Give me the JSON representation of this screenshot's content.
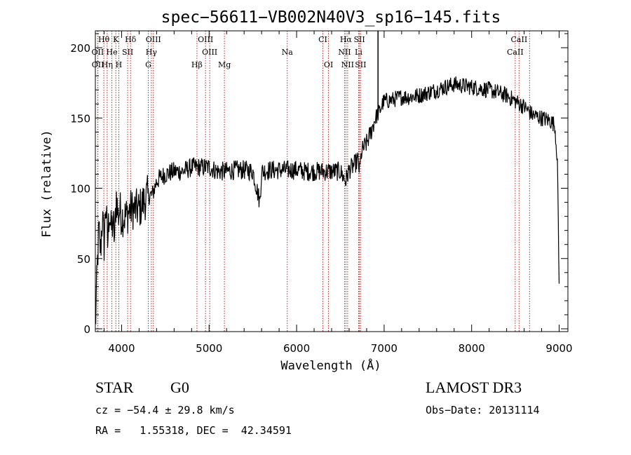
{
  "chart_data": {
    "type": "line",
    "title": "spec−56611−VB002N40V3_sp16−145.fits",
    "xlabel": "Wavelength (Å)",
    "ylabel": "Flux (relative)",
    "xlim": [
      3700,
      9100
    ],
    "ylim": [
      -2,
      212
    ],
    "xticks": [
      4000,
      5000,
      6000,
      7000,
      8000,
      9000
    ],
    "yticks": [
      0,
      50,
      100,
      150,
      200
    ],
    "series": [
      {
        "name": "flux",
        "x": [
          3700,
          3720,
          3740,
          3760,
          3780,
          3800,
          3820,
          3840,
          3860,
          3880,
          3900,
          3920,
          3940,
          3960,
          3980,
          4000,
          4050,
          4100,
          4150,
          4200,
          4250,
          4300,
          4350,
          4400,
          4450,
          4500,
          4600,
          4700,
          4800,
          4900,
          5000,
          5100,
          5200,
          5300,
          5400,
          5500,
          5580,
          5600,
          5700,
          5800,
          5900,
          6000,
          6100,
          6200,
          6300,
          6400,
          6500,
          6560,
          6600,
          6650,
          6700,
          6720,
          6740,
          6760,
          6800,
          6850,
          6900,
          6950,
          6980,
          7000,
          7100,
          7200,
          7300,
          7400,
          7500,
          7600,
          7700,
          7800,
          7900,
          8000,
          8100,
          8200,
          8300,
          8400,
          8500,
          8600,
          8700,
          8800,
          8900,
          8950,
          8980,
          9000
        ],
        "y": [
          0,
          40,
          70,
          55,
          80,
          60,
          90,
          60,
          85,
          70,
          75,
          65,
          95,
          80,
          85,
          80,
          80,
          85,
          85,
          85,
          90,
          95,
          95,
          105,
          108,
          110,
          112,
          112,
          115,
          115,
          115,
          112,
          112,
          113,
          113,
          112,
          90,
          112,
          113,
          113,
          113,
          113,
          112,
          112,
          112,
          112,
          112,
          105,
          113,
          116,
          120,
          112,
          125,
          128,
          132,
          140,
          150,
          155,
          160,
          162,
          163,
          165,
          165,
          166,
          168,
          170,
          172,
          174,
          173,
          172,
          171,
          170,
          168,
          166,
          162,
          158,
          152,
          150,
          148,
          145,
          120,
          30
        ]
      }
    ],
    "lines": [
      {
        "name": "Hθ",
        "x": 3797
      },
      {
        "name": "K",
        "x": 3934
      },
      {
        "name": "Hδ",
        "x": 4102
      },
      {
        "name": "OIII",
        "x": 4363
      },
      {
        "name": "OIII",
        "x": 4959
      },
      {
        "name": "CI",
        "x": 6300
      },
      {
        "name": "Hα",
        "x": 6563
      },
      {
        "name": "SII",
        "x": 6717
      },
      {
        "name": "CaII",
        "x": 8542
      },
      {
        "name": "OII",
        "x": 3727
      },
      {
        "name": "He",
        "x": 3889
      },
      {
        "name": "SII",
        "x": 4069
      },
      {
        "name": "Hγ",
        "x": 4340
      },
      {
        "name": "OIII",
        "x": 5007
      },
      {
        "name": "Na",
        "x": 5893
      },
      {
        "name": "NII",
        "x": 6548
      },
      {
        "name": "Li",
        "x": 6708
      },
      {
        "name": "CaII",
        "x": 8498
      },
      {
        "name": "OII",
        "x": 3729
      },
      {
        "name": "Hη",
        "x": 3835
      },
      {
        "name": "H",
        "x": 3968
      },
      {
        "name": "G",
        "x": 4305
      },
      {
        "name": "Hβ",
        "x": 4861
      },
      {
        "name": "Mg",
        "x": 5175
      },
      {
        "name": "OI",
        "x": 6364
      },
      {
        "name": "NII",
        "x": 6583
      },
      {
        "name": "SII",
        "x": 6731
      },
      {
        "name": "CaII",
        "x": 8662
      }
    ]
  },
  "info": {
    "class": "STAR",
    "subclass": "G0",
    "survey": "LAMOST DR3",
    "cz": "cz = −54.4 ± 29.8 km/s",
    "obs_date": "Obs−Date: 20131114",
    "radec": "RA =   1.55318, DEC =  42.34591"
  },
  "colors": {
    "line_marker": "#cc2222",
    "spectrum": "#000000",
    "axis": "#000000"
  }
}
